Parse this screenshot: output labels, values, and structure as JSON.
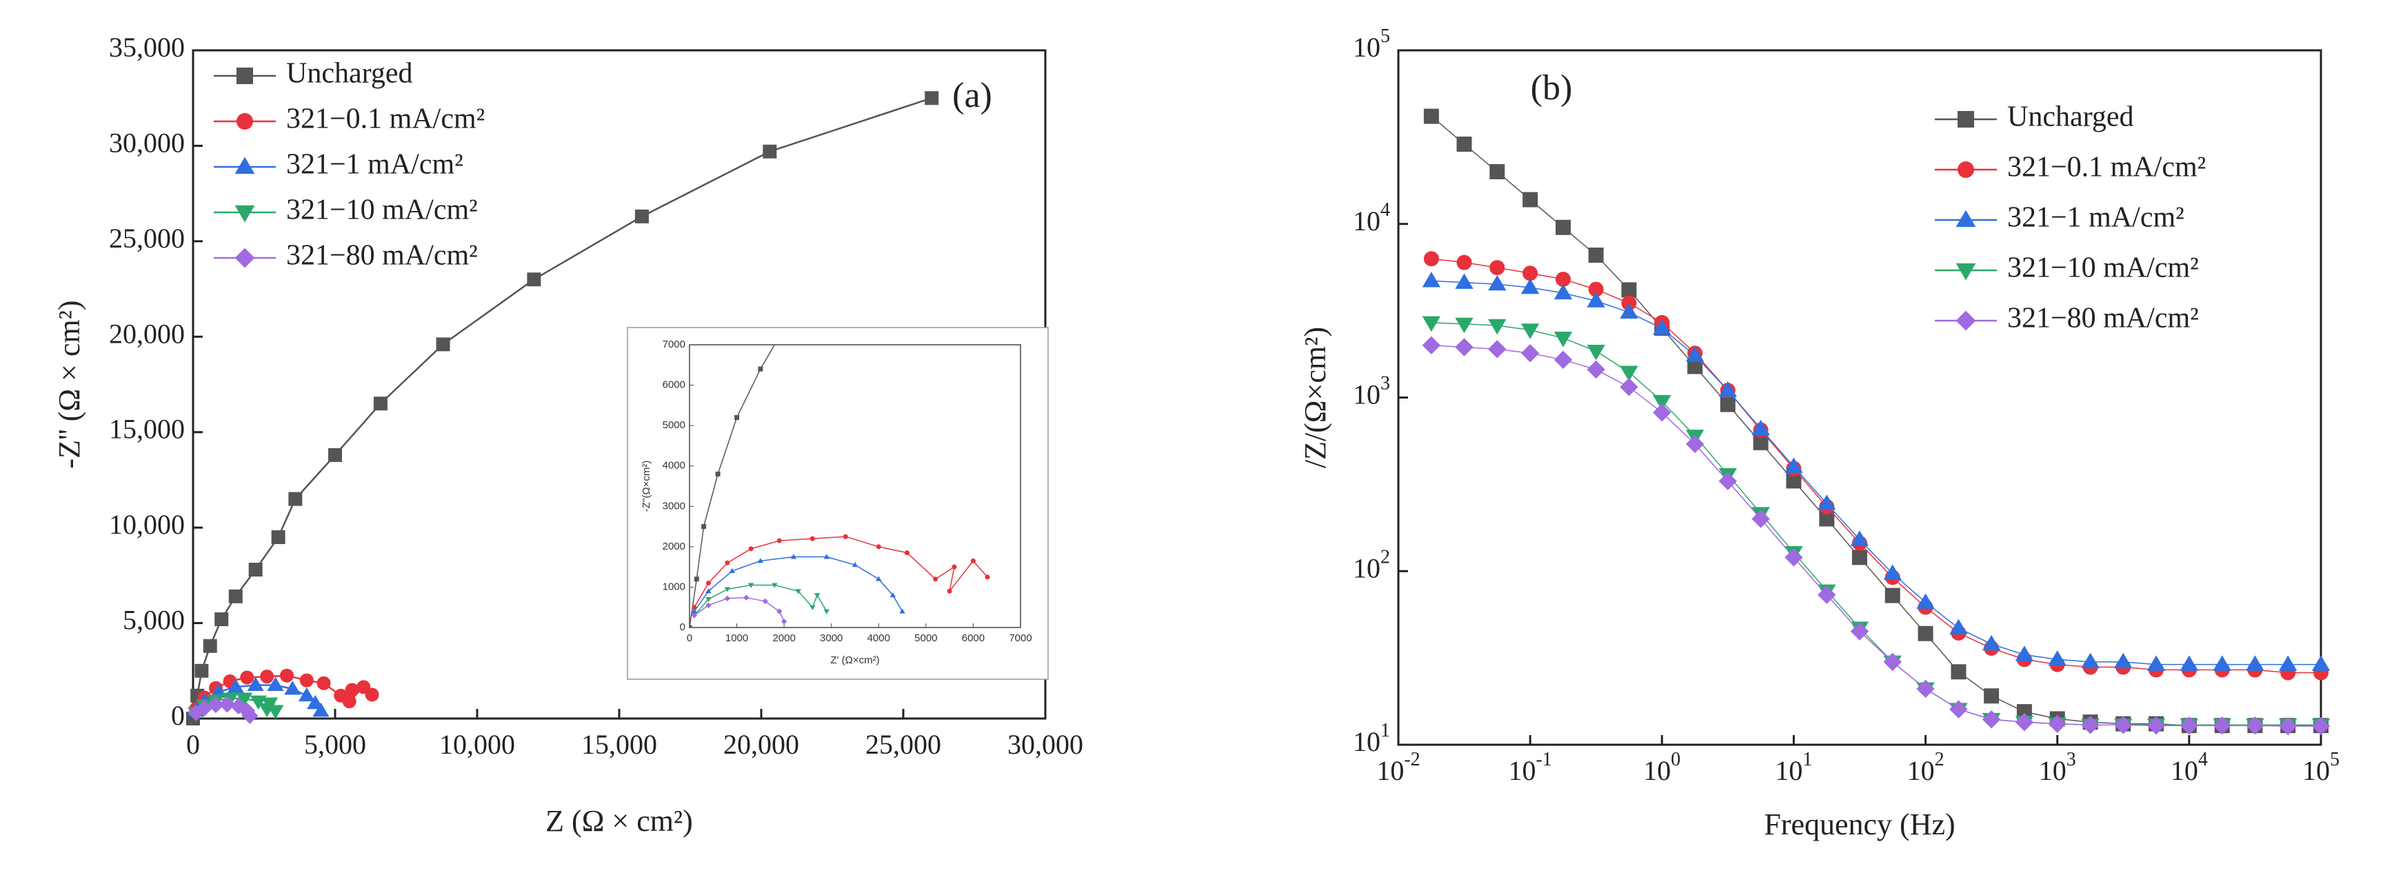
{
  "chart_data": [
    {
      "type": "line",
      "panel_label": "(a)",
      "xlabel": "Z  (Ω × cm²)",
      "ylabel": "-Z'' (Ω × cm²)",
      "xlim": [
        0,
        30000
      ],
      "xticks": [
        0,
        {
          "value": 5000,
          "label": "5,000"
        },
        {
          "value": 10000,
          "label": "10,000"
        },
        {
          "value": 15000,
          "label": "15,000"
        },
        {
          "value": 20000,
          "label": "20,000"
        },
        {
          "value": 25000,
          "label": "25,000"
        },
        {
          "value": 30000,
          "label": "30,000"
        }
      ],
      "ylim": [
        0,
        35000
      ],
      "yticks": [
        0,
        {
          "value": 5000,
          "label": "5,000"
        },
        {
          "value": 10000,
          "label": "10,000"
        },
        {
          "value": 15000,
          "label": "15,000"
        },
        {
          "value": 20000,
          "label": "20,000"
        },
        {
          "value": 25000,
          "label": "25,000"
        },
        {
          "value": 30000,
          "label": "30,000"
        },
        {
          "value": 35000,
          "label": "35,000"
        }
      ],
      "legend": "upper left",
      "series": [
        {
          "name": "Uncharged",
          "color": "#555555",
          "marker": "square",
          "x": [
            0,
            150,
            300,
            600,
            1000,
            1500,
            2200,
            3000,
            3600,
            5000,
            6600,
            8800,
            12000,
            15800,
            20300,
            26000
          ],
          "values": [
            0,
            1200,
            2500,
            3800,
            5200,
            6400,
            7800,
            9500,
            11500,
            13800,
            16500,
            19600,
            23000,
            26300,
            29700,
            32500
          ]
        },
        {
          "name": "321−0.1 mA/cm²",
          "color": "#e8313a",
          "marker": "circle",
          "x": [
            100,
            400,
            800,
            1300,
            1900,
            2600,
            3300,
            4000,
            4600,
            5200,
            5600,
            5500,
            6000,
            6300
          ],
          "values": [
            500,
            1100,
            1600,
            1950,
            2150,
            2200,
            2250,
            2000,
            1850,
            1200,
            1500,
            900,
            1650,
            1250
          ]
        },
        {
          "name": "321−1 mA/cm²",
          "color": "#2f6fe0",
          "marker": "triangle",
          "x": [
            100,
            400,
            900,
            1500,
            2200,
            2900,
            3500,
            4000,
            4300,
            4500
          ],
          "values": [
            400,
            900,
            1400,
            1650,
            1750,
            1750,
            1550,
            1200,
            800,
            400
          ]
        },
        {
          "name": "321−10 mA/cm²",
          "color": "#2aa86a",
          "marker": "triangle-down",
          "x": [
            100,
            400,
            800,
            1300,
            1800,
            2300,
            2600,
            2700,
            2900
          ],
          "values": [
            300,
            700,
            950,
            1050,
            1050,
            900,
            500,
            800,
            400
          ]
        },
        {
          "name": "321−80 mA/cm²",
          "color": "#a06ae0",
          "marker": "diamond",
          "x": [
            100,
            400,
            800,
            1200,
            1600,
            1900,
            2000
          ],
          "values": [
            300,
            550,
            720,
            740,
            650,
            400,
            150
          ]
        }
      ],
      "inset": {
        "xlabel": "Z' (Ω×cm²)",
        "ylabel": "-Z''(Ω×cm²)",
        "xlim": [
          0,
          7000
        ],
        "ylim": [
          0,
          7000
        ],
        "xticks": [
          0,
          1000,
          2000,
          3000,
          4000,
          5000,
          6000,
          7000
        ],
        "yticks": [
          0,
          1000,
          2000,
          3000,
          4000,
          5000,
          6000,
          7000
        ]
      }
    },
    {
      "type": "line",
      "panel_label": "(b)",
      "xlabel": "Frequency (Hz)",
      "ylabel": "/Z/(Ω×cm²)",
      "xscale": "log",
      "yscale": "log",
      "xlim": [
        0.01,
        100000
      ],
      "xticks": [
        {
          "value": 0.01,
          "label": "10",
          "exp": "-2"
        },
        {
          "value": 0.1,
          "label": "10",
          "exp": "-1"
        },
        {
          "value": 1,
          "label": "10",
          "exp": "0"
        },
        {
          "value": 10,
          "label": "10",
          "exp": "1"
        },
        {
          "value": 100,
          "label": "10",
          "exp": "2"
        },
        {
          "value": 1000,
          "label": "10",
          "exp": "3"
        },
        {
          "value": 10000,
          "label": "10",
          "exp": "4"
        },
        {
          "value": 100000,
          "label": "10",
          "exp": "5"
        }
      ],
      "ylim": [
        10,
        100000
      ],
      "yticks": [
        {
          "value": 10,
          "label": "10",
          "exp": "1"
        },
        {
          "value": 100,
          "label": "10",
          "exp": "2"
        },
        {
          "value": 1000,
          "label": "10",
          "exp": "3"
        },
        {
          "value": 10000,
          "label": "10",
          "exp": "4"
        },
        {
          "value": 100000,
          "label": "10",
          "exp": "5"
        }
      ],
      "legend": "upper right",
      "x": [
        0.0178,
        0.0316,
        0.0562,
        0.1,
        0.178,
        0.316,
        0.562,
        1,
        1.78,
        3.16,
        5.62,
        10,
        17.8,
        31.6,
        56.2,
        100,
        178,
        316,
        562,
        1000,
        1780,
        3160,
        5620,
        10000,
        17800,
        31600,
        56200,
        100000
      ],
      "series": [
        {
          "name": "Uncharged",
          "color": "#555555",
          "marker": "square",
          "values": [
            41700,
            28800,
            20000,
            13800,
            9550,
            6610,
            4170,
            2510,
            1510,
            912,
            550,
            331,
            200,
            120,
            72.4,
            43.7,
            26.3,
            19.1,
            15.5,
            14.1,
            13.5,
            13.2,
            13.2,
            12.9,
            12.9,
            12.9,
            12.9,
            12.9
          ]
        },
        {
          "name": "321−0.1 mA/cm²",
          "color": "#e8313a",
          "marker": "circle",
          "values": [
            6300,
            6000,
            5600,
            5200,
            4800,
            4200,
            3500,
            2700,
            1800,
            1100,
            650,
            390,
            235,
            145,
            92,
            62,
            44,
            36,
            31,
            29,
            28,
            28,
            27,
            27,
            27,
            27,
            26,
            26
          ]
        },
        {
          "name": "321−1 mA/cm²",
          "color": "#2f6fe0",
          "marker": "triangle",
          "values": [
            4700,
            4600,
            4500,
            4300,
            4000,
            3600,
            3100,
            2500,
            1750,
            1100,
            660,
            400,
            245,
            152,
            97,
            66,
            47,
            38,
            33,
            31,
            30,
            30,
            29,
            29,
            29,
            29,
            29,
            29
          ]
        },
        {
          "name": "321−10 mA/cm²",
          "color": "#2aa86a",
          "marker": "triangle-down",
          "values": [
            2700,
            2650,
            2600,
            2450,
            2200,
            1850,
            1400,
            950,
            600,
            360,
            215,
            128,
            77,
            47,
            30,
            21,
            16,
            14,
            13.5,
            13.2,
            13,
            13,
            13,
            13,
            13,
            13,
            13,
            13
          ]
        },
        {
          "name": "321−80 mA/cm²",
          "color": "#a06ae0",
          "marker": "diamond",
          "values": [
            2000,
            1950,
            1900,
            1800,
            1650,
            1450,
            1150,
            820,
            540,
            330,
            200,
            120,
            73,
            45,
            30,
            21,
            16,
            14,
            13.5,
            13.2,
            13,
            13,
            12.9,
            12.9,
            12.9,
            12.9,
            12.8,
            12.8
          ]
        }
      ]
    }
  ]
}
